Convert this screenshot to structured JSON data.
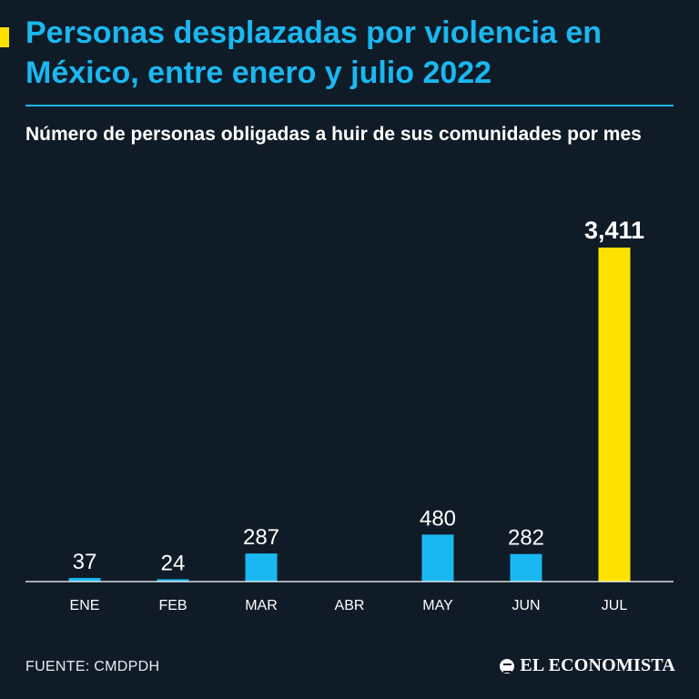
{
  "header": {
    "title": "Personas desplazadas por violencia en México, entre enero y julio 2022",
    "subtitle": "Número de personas obligadas a huir de sus comunidades por mes"
  },
  "footer": {
    "source": "FUENTE: CMDPDH",
    "brand": "EL ECONOMISTA"
  },
  "colors": {
    "background": "#101b28",
    "accent": "#1ab8f0",
    "highlight": "#ffe100"
  },
  "chart_data": {
    "type": "bar",
    "categories": [
      "ENE",
      "FEB",
      "MAR",
      "ABR",
      "MAY",
      "JUN",
      "JUL"
    ],
    "values": [
      37,
      24,
      287,
      null,
      480,
      282,
      3411
    ],
    "data_labels": [
      "37",
      "24",
      "287",
      "",
      "480",
      "282",
      "3,411"
    ],
    "highlight_category": "JUL",
    "ylim": [
      0,
      3411
    ],
    "grid": false,
    "xlabel": "",
    "ylabel": ""
  }
}
